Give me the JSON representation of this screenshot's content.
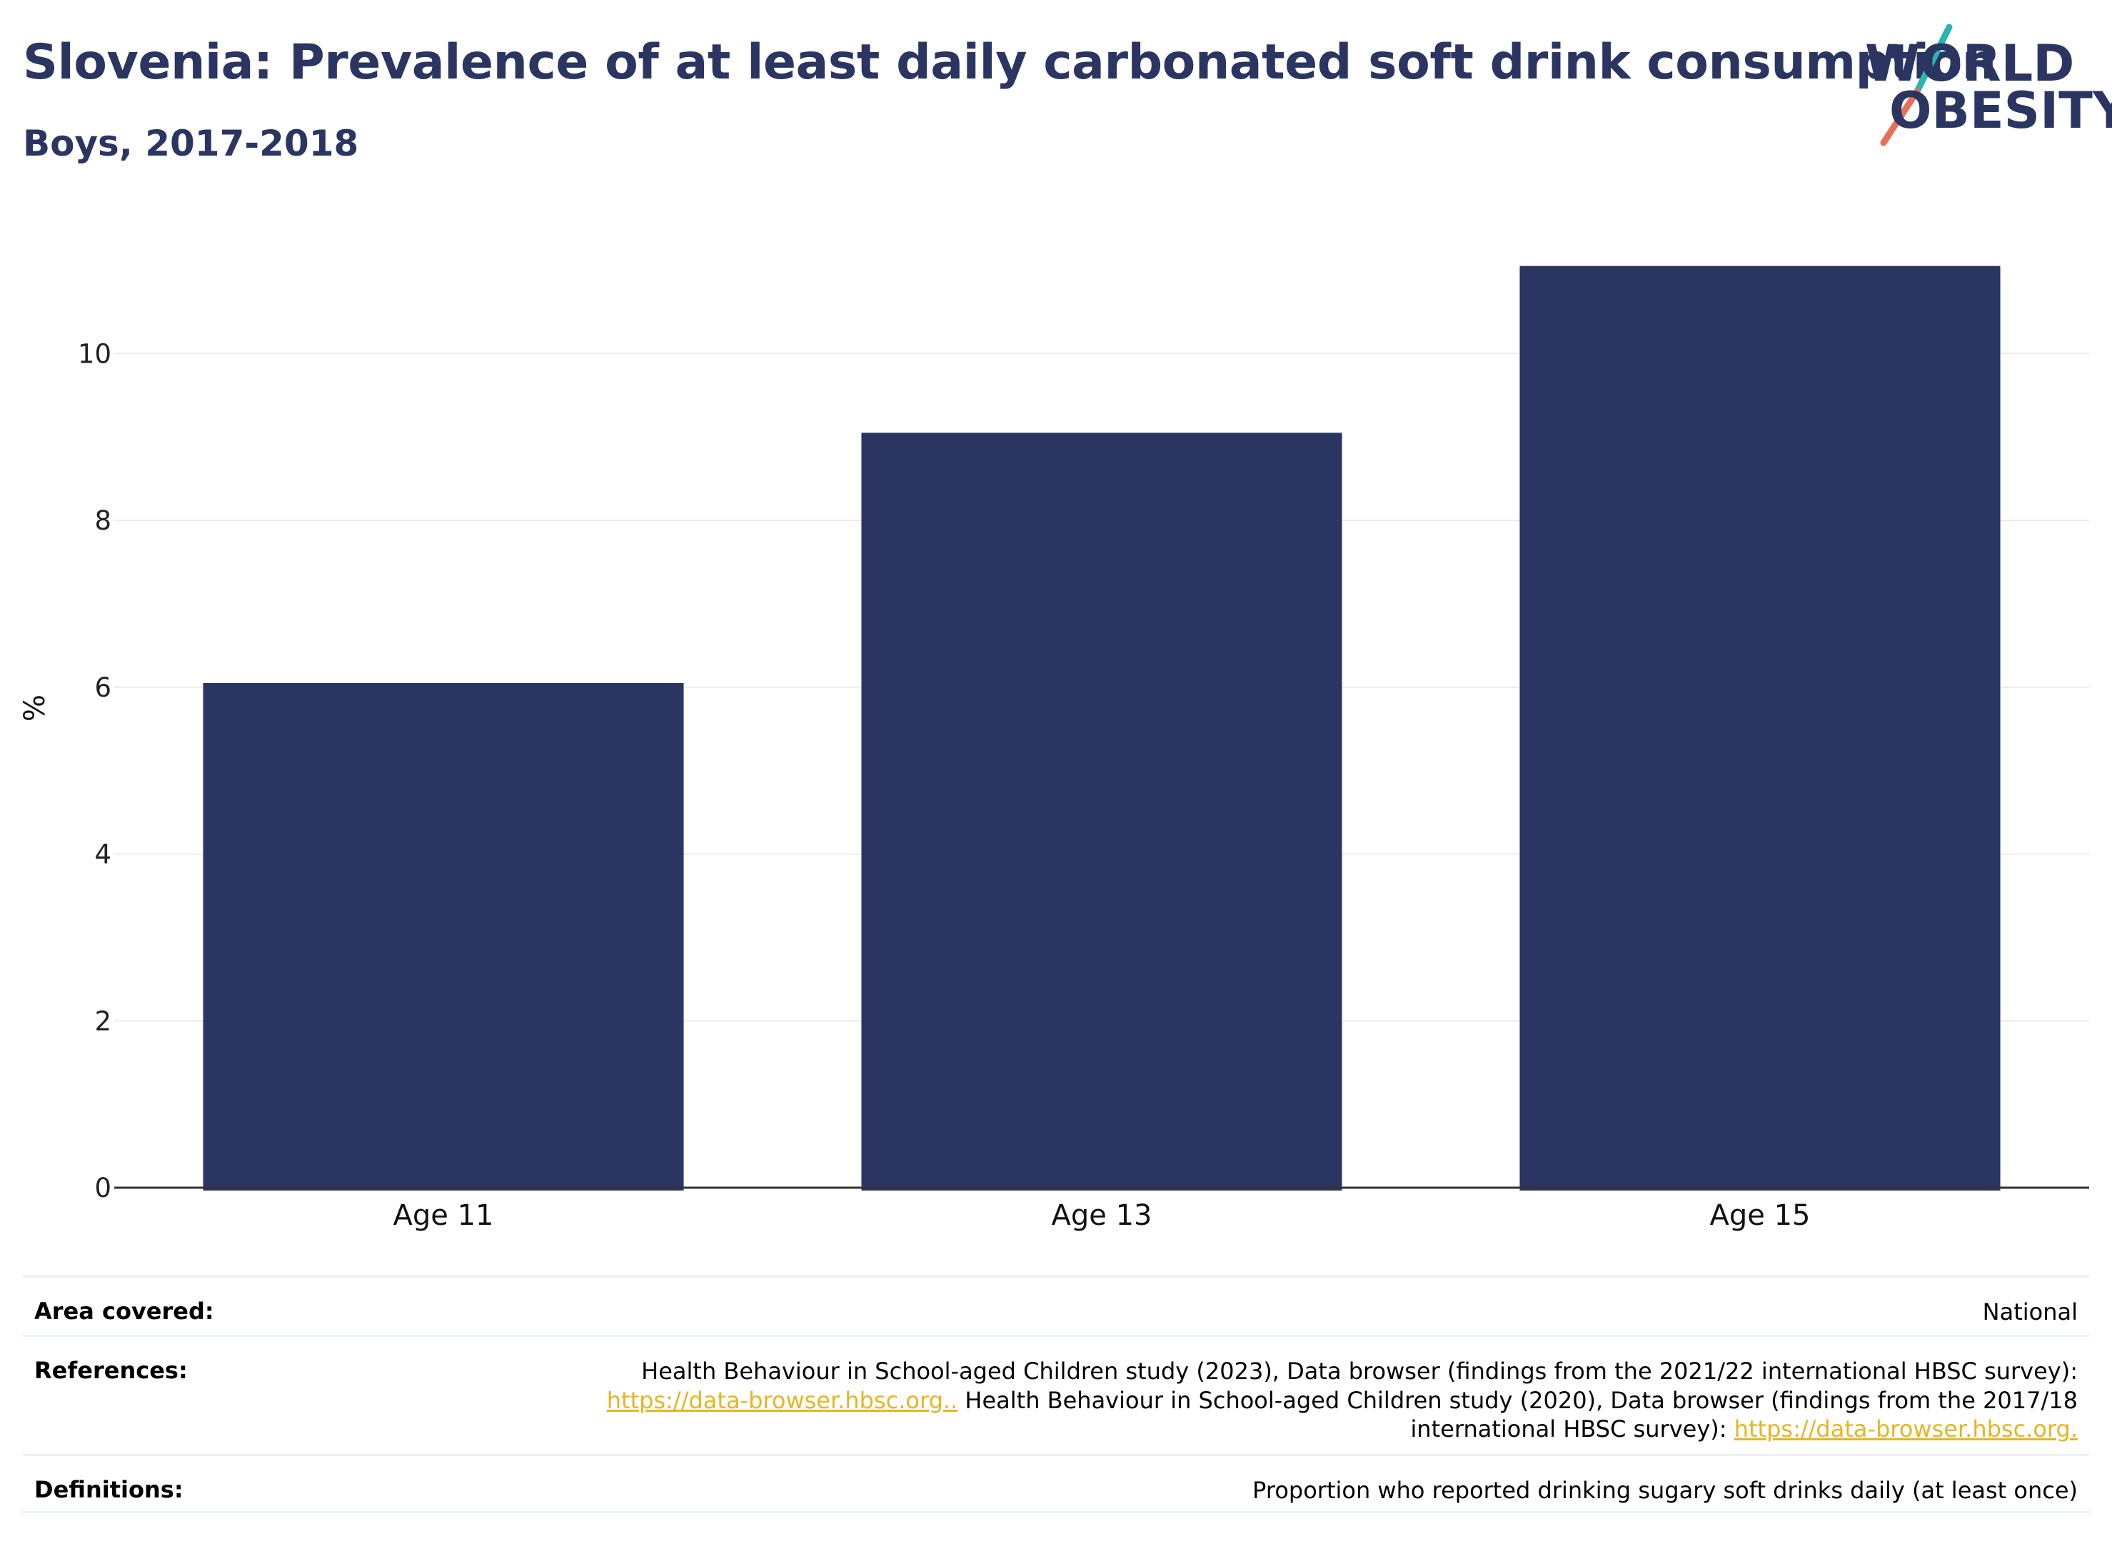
{
  "header": {
    "title": "Slovenia: Prevalence of at least daily carbonated soft drink consumption",
    "subtitle": "Boys, 2017-2018"
  },
  "logo": {
    "line1": "WORLD",
    "line2": "OBESITY",
    "colors": {
      "text": "#2b3562",
      "slash_top": "#2bb5b0",
      "slash_bottom": "#e8705a"
    }
  },
  "chart_data": {
    "type": "bar",
    "categories": [
      "Age 11",
      "Age 13",
      "Age 15"
    ],
    "values": [
      6.05,
      9.05,
      11.05
    ],
    "title": "",
    "xlabel": "",
    "ylabel": "%",
    "ylim": [
      0,
      11.5
    ],
    "yticks": [
      0,
      2,
      4,
      6,
      8,
      10
    ],
    "grid": true,
    "bar_color": "#2b3562"
  },
  "meta": {
    "area_label": "Area covered:",
    "area_value": "National",
    "references_label": "References:",
    "references_part1": "Health Behaviour in School-aged Children study (2023), Data browser (findings from the 2021/22 international HBSC survey):",
    "references_link1": "https://data-browser.hbsc.org..",
    "references_part2": " Health Behaviour in School-aged Children study (2020), Data browser (findings from the 2017/18 international HBSC survey): ",
    "references_link2": "https://data-browser.hbsc.org.",
    "definitions_label": "Definitions:",
    "definitions_value": "Proportion who reported drinking sugary soft drinks daily (at least once)"
  }
}
